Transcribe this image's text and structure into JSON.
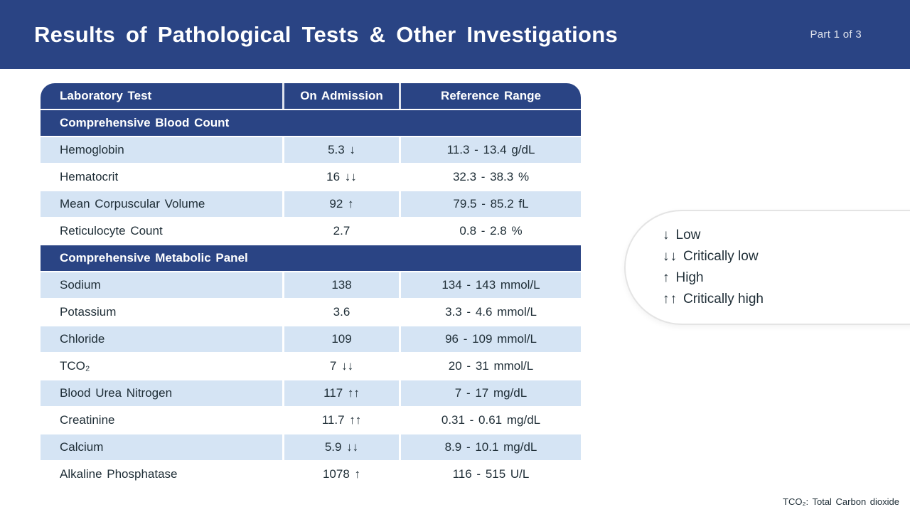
{
  "colors": {
    "brand_blue": "#2a4484",
    "row_light_blue": "#d5e4f4",
    "text_dark": "#1e2d36",
    "legend_border": "#e4e4e4"
  },
  "header": {
    "title": "Results of Pathological Tests & Other Investigations",
    "part": "Part 1 of 3"
  },
  "table": {
    "columns": [
      "Laboratory Test",
      "On Admission",
      "Reference Range"
    ],
    "sections": [
      {
        "label": "Comprehensive Blood Count",
        "rows": [
          {
            "name": "Hemoglobin",
            "value": "5.3 ↓",
            "range": "11.3 - 13.4 g/dL"
          },
          {
            "name": "Hematocrit",
            "value": "16 ↓↓",
            "range": "32.3 - 38.3 %"
          },
          {
            "name": "Mean Corpuscular Volume",
            "value": "92 ↑",
            "range": "79.5 - 85.2 fL"
          },
          {
            "name": "Reticulocyte Count",
            "value": "2.7",
            "range": "0.8 - 2.8 %"
          }
        ]
      },
      {
        "label": "Comprehensive Metabolic Panel",
        "rows": [
          {
            "name": "Sodium",
            "value": "138",
            "range": "134 - 143 mmol/L"
          },
          {
            "name": "Potassium",
            "value": "3.6",
            "range": "3.3 - 4.6 mmol/L"
          },
          {
            "name": "Chloride",
            "value": "109",
            "range": "96 - 109 mmol/L"
          },
          {
            "name": "TCO₂",
            "value": "7 ↓↓",
            "range": "20 - 31 mmol/L"
          },
          {
            "name": "Blood Urea Nitrogen",
            "value": "117 ↑↑",
            "range": "7 - 17 mg/dL"
          },
          {
            "name": "Creatinine",
            "value": "11.7 ↑↑",
            "range": "0.31 - 0.61 mg/dL"
          },
          {
            "name": "Calcium",
            "value": "5.9 ↓↓",
            "range": "8.9 - 10.1 mg/dL"
          },
          {
            "name": "Alkaline Phosphatase",
            "value": "1078 ↑",
            "range": "116 - 515 U/L"
          }
        ]
      }
    ]
  },
  "legend": {
    "items": [
      {
        "symbol": "↓",
        "label": "Low"
      },
      {
        "symbol": "↓↓",
        "label": "Critically low"
      },
      {
        "symbol": "↑",
        "label": "High"
      },
      {
        "symbol": "↑↑",
        "label": "Critically high"
      }
    ]
  },
  "footnote": "TCO₂: Total Carbon dioxide"
}
